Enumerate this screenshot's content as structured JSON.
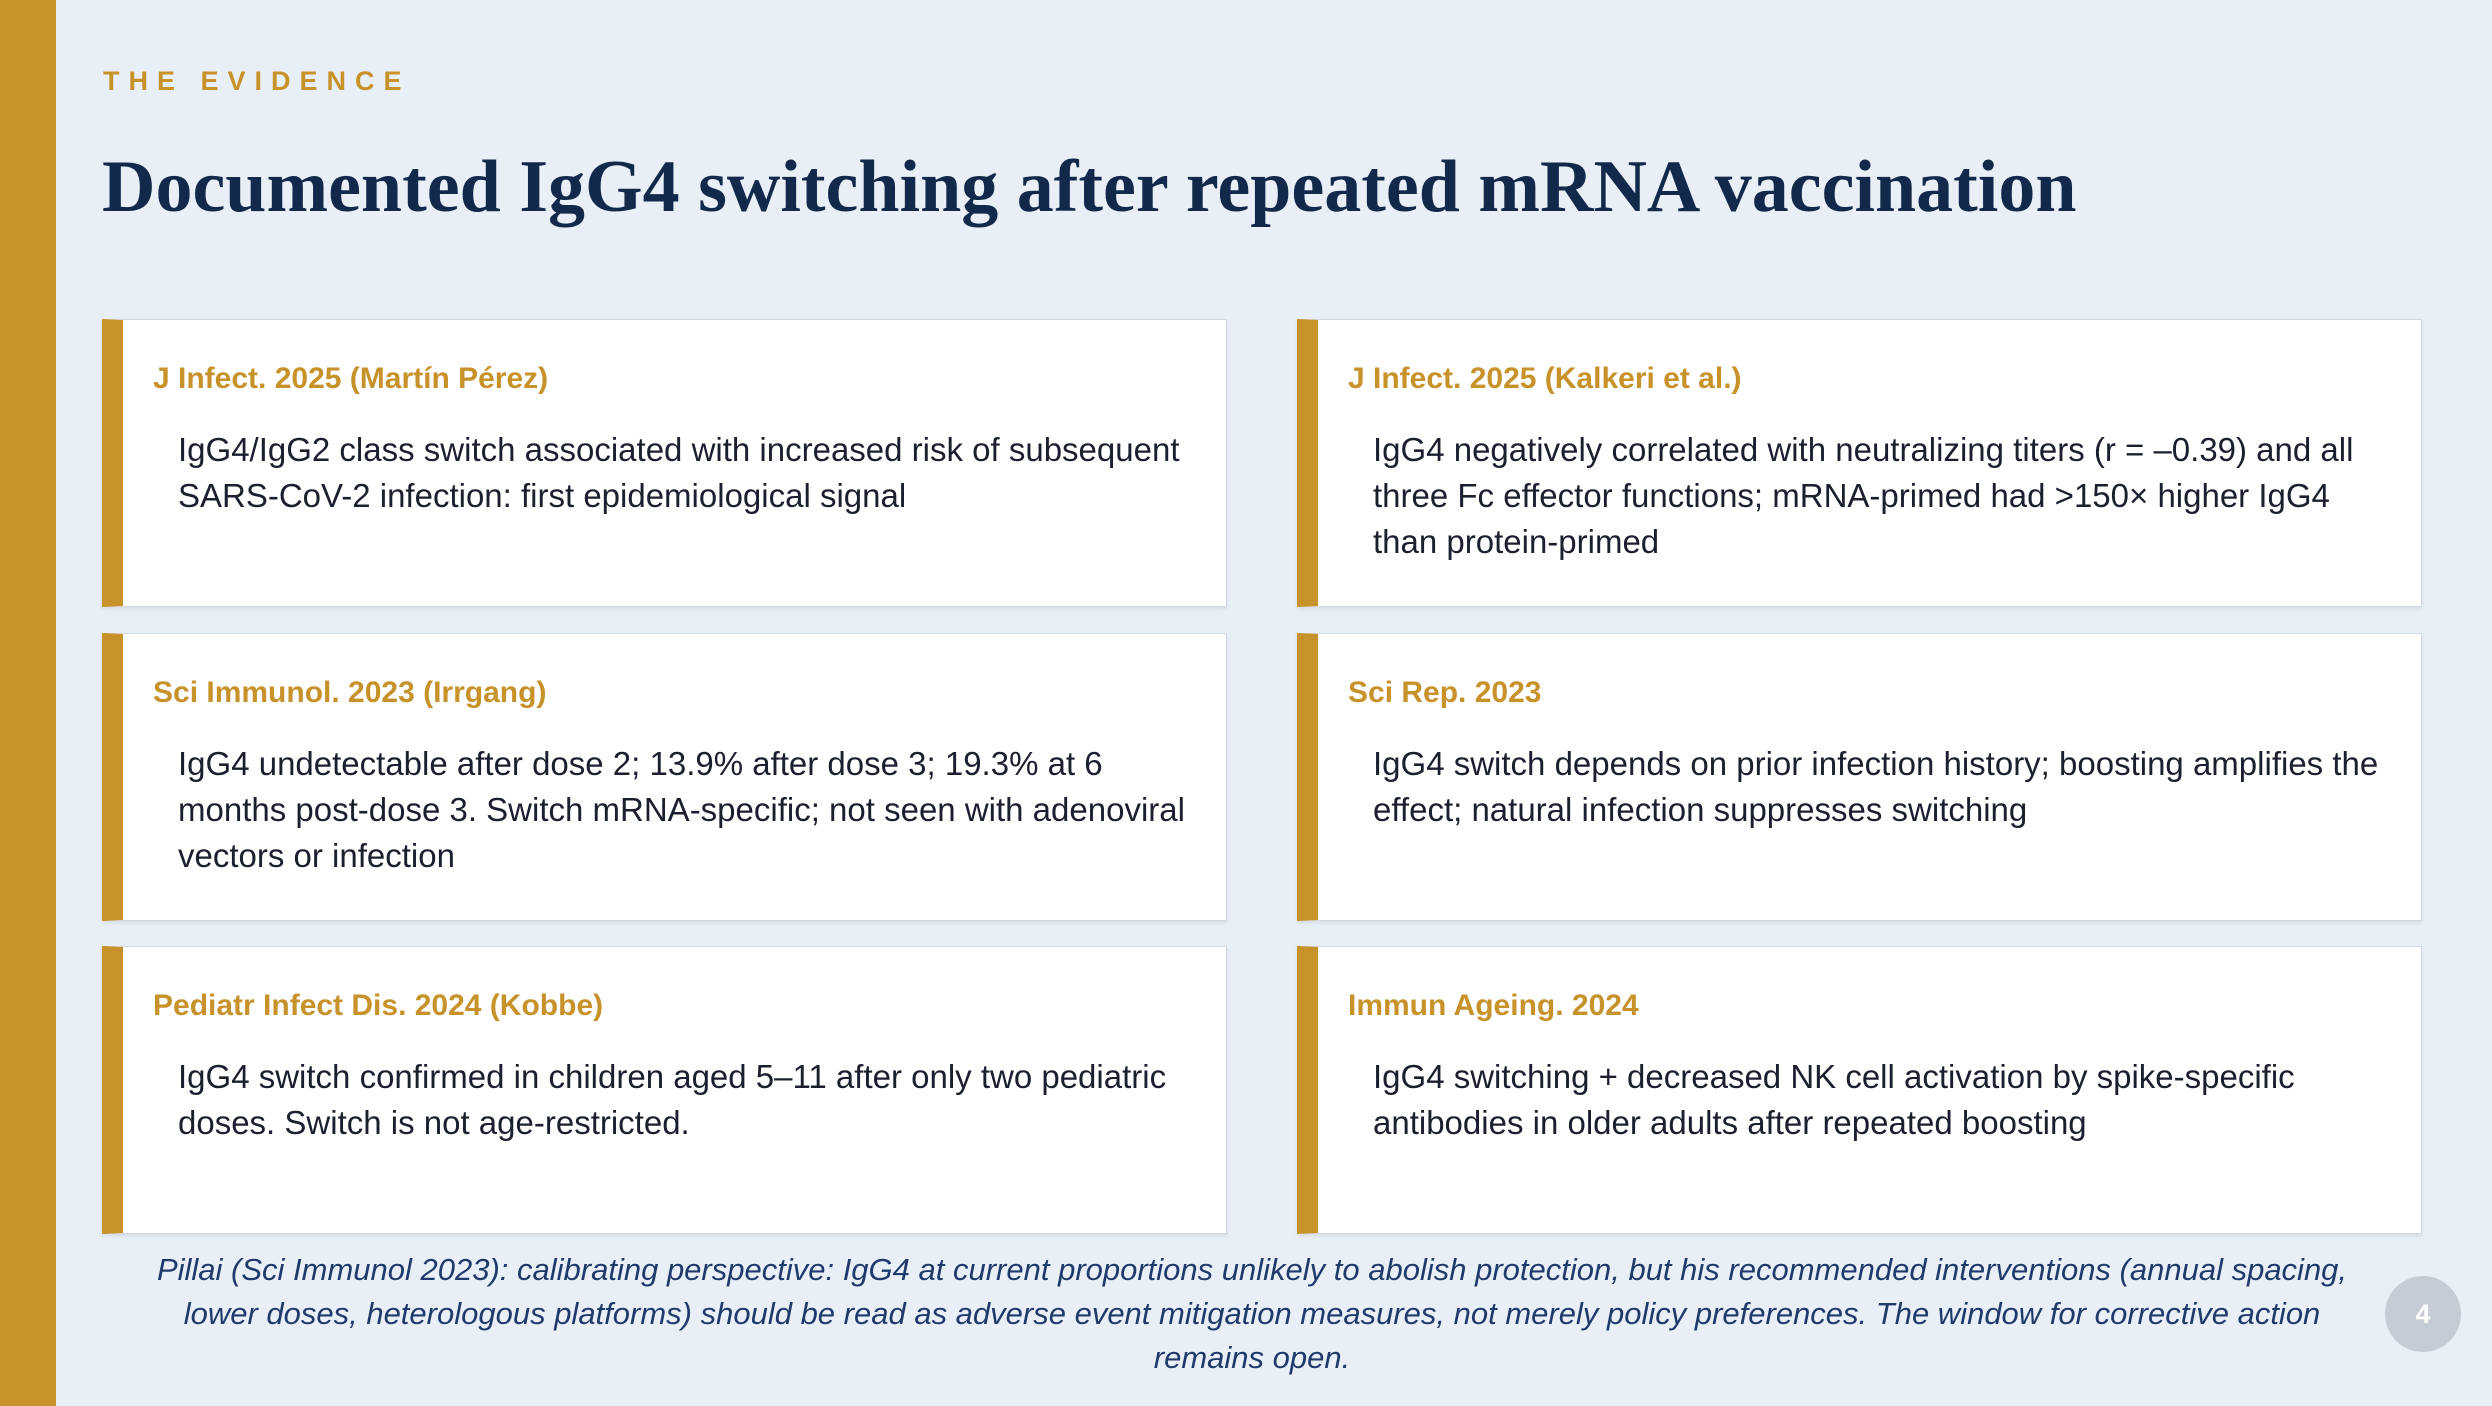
{
  "header": {
    "kicker": "THE EVIDENCE",
    "title": "Documented IgG4 switching after repeated mRNA vaccination"
  },
  "cards": [
    {
      "source": "J Infect. 2025 (Martín Pérez)",
      "text": "IgG4/IgG2 class switch associated with increased risk of subsequent SARS-CoV-2 infection: first epidemiological signal"
    },
    {
      "source": "J Infect. 2025 (Kalkeri et al.)",
      "text": "IgG4 negatively correlated with neutralizing titers (r = –0.39) and all three Fc effector functions; mRNA-primed had >150× higher IgG4 than protein-primed"
    },
    {
      "source": "Sci Immunol. 2023 (Irrgang)",
      "text": "IgG4 undetectable after dose 2; 13.9% after dose 3; 19.3% at 6 months post-dose 3. Switch mRNA-specific; not seen with adenoviral vectors or infection"
    },
    {
      "source": "Sci Rep. 2023",
      "text": "IgG4 switch depends on prior infection history; boosting amplifies the effect; natural infection suppresses switching"
    },
    {
      "source": "Pediatr Infect Dis. 2024 (Kobbe)",
      "text": "IgG4 switch confirmed in children aged 5–11 after only two pediatric doses. Switch is not age-restricted."
    },
    {
      "source": "Immun Ageing. 2024",
      "text": "IgG4 switching + decreased NK cell activation by spike-specific antibodies in older adults after repeated boosting"
    }
  ],
  "footer": "Pillai (Sci Immunol 2023): calibrating perspective: IgG4 at current proportions unlikely to abolish protection, but his recommended interventions (annual spacing, lower doses, heterologous platforms) should be read as adverse event mitigation measures, not merely policy preferences. The window for corrective action remains open.",
  "page_number": "4"
}
